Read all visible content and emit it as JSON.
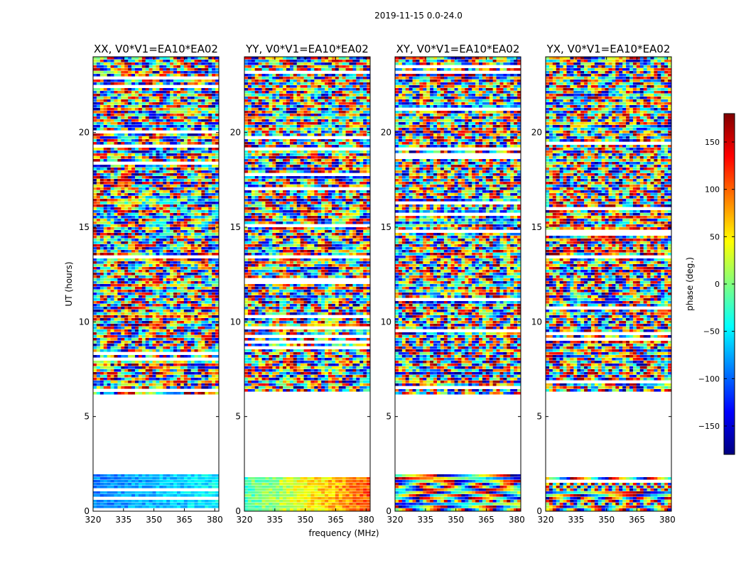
{
  "figure": {
    "suptitle": "2019-11-15 0.0-24.0",
    "xlabel": "frequency (MHz)",
    "ylabel": "UT (hours)",
    "colorbar_label": "phase (deg.)",
    "colorbar_ticks": [
      150,
      100,
      50,
      0,
      -50,
      -100,
      -150
    ],
    "colorbar_tick_labels": [
      "150",
      "100",
      "50",
      "0",
      "−50",
      "−100",
      "−150"
    ],
    "colorbar_range": [
      -180,
      180
    ],
    "colormap": "jet",
    "colormap_stops": [
      "#00007f",
      "#0000ff",
      "#007fff",
      "#00ffff",
      "#7fff7f",
      "#ffff00",
      "#ff7f00",
      "#ff0000",
      "#7f0000"
    ]
  },
  "chart_data": [
    {
      "type": "heatmap",
      "title": "XX, V0*V1=EA10*EA02",
      "xlabel": "",
      "ylabel": "UT (hours)",
      "xlim": [
        320,
        382
      ],
      "ylim": [
        0,
        24
      ],
      "xticks": [
        320,
        335,
        350,
        365,
        380
      ],
      "yticks": [
        0,
        5,
        10,
        15,
        20
      ],
      "value_label": "phase (deg.)",
      "no_data_ranges_ut": [
        [
          2.0,
          6.1
        ]
      ]
    },
    {
      "type": "heatmap",
      "title": "YY, V0*V1=EA10*EA02",
      "xlabel": "frequency (MHz)",
      "ylabel": "",
      "xlim": [
        320,
        382
      ],
      "ylim": [
        0,
        24
      ],
      "xticks": [
        320,
        335,
        350,
        365,
        380
      ],
      "yticks": [
        0,
        5,
        10,
        15,
        20
      ],
      "value_label": "phase (deg.)",
      "no_data_ranges_ut": [
        [
          2.0,
          6.1
        ]
      ]
    },
    {
      "type": "heatmap",
      "title": "XY, V0*V1=EA10*EA02",
      "xlabel": "",
      "ylabel": "",
      "xlim": [
        320,
        382
      ],
      "ylim": [
        0,
        24
      ],
      "xticks": [
        320,
        335,
        350,
        365,
        380
      ],
      "yticks": [
        0,
        5,
        10,
        15,
        20
      ],
      "value_label": "phase (deg.)",
      "no_data_ranges_ut": [
        [
          2.0,
          6.1
        ]
      ]
    },
    {
      "type": "heatmap",
      "title": "YX, V0*V1=EA10*EA02",
      "xlabel": "",
      "ylabel": "",
      "xlim": [
        320,
        382
      ],
      "ylim": [
        0,
        24
      ],
      "xticks": [
        320,
        335,
        350,
        365,
        380
      ],
      "yticks": [
        0,
        5,
        10,
        15,
        20
      ],
      "value_label": "phase (deg.)",
      "no_data_ranges_ut": [
        [
          2.0,
          6.1
        ]
      ]
    }
  ]
}
